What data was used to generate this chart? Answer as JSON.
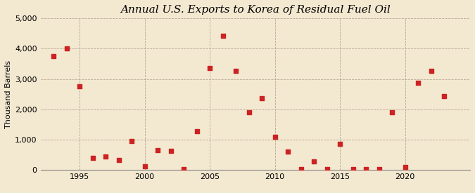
{
  "title": "Annual U.S. Exports to Korea of Residual Fuel Oil",
  "ylabel": "Thousand Barrels",
  "background_color": "#f3e8d0",
  "plot_bg_color": "#f3e8d0",
  "marker_color": "#cc2222",
  "years": [
    1993,
    1994,
    1995,
    1996,
    1997,
    1998,
    1999,
    2000,
    2001,
    2002,
    2003,
    2004,
    2005,
    2006,
    2007,
    2008,
    2009,
    2010,
    2011,
    2012,
    2013,
    2014,
    2015,
    2016,
    2017,
    2018,
    2019,
    2020,
    2021,
    2022,
    2023
  ],
  "values": [
    3750,
    4000,
    2750,
    400,
    450,
    330,
    950,
    130,
    650,
    630,
    30,
    1280,
    3360,
    4430,
    3280,
    1900,
    2370,
    1090,
    610,
    30,
    280,
    30,
    860,
    30,
    30,
    30,
    1900,
    100,
    2880,
    3280,
    2440
  ],
  "ylim": [
    0,
    5000
  ],
  "yticks": [
    0,
    1000,
    2000,
    3000,
    4000,
    5000
  ],
  "xtick_positions": [
    1995,
    2000,
    2005,
    2010,
    2015,
    2020
  ],
  "xlim": [
    1992,
    2025
  ],
  "title_fontsize": 11,
  "label_fontsize": 8,
  "tick_fontsize": 8,
  "source_fontsize": 7.5
}
